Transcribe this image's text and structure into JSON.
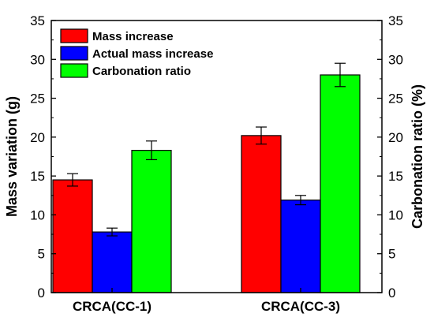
{
  "chart_data": {
    "type": "bar",
    "categories": [
      "CRCA(CC-1)",
      "CRCA(CC-3)"
    ],
    "series": [
      {
        "name": "Mass increase",
        "axis": "left",
        "color": "#ff0000",
        "values": [
          14.5,
          20.2
        ],
        "errors": [
          0.8,
          1.1
        ]
      },
      {
        "name": "Actual mass increase",
        "axis": "left",
        "color": "#0000ff",
        "values": [
          7.8,
          11.9
        ],
        "errors": [
          0.5,
          0.6
        ]
      },
      {
        "name": "Carbonation ratio",
        "axis": "right",
        "color": "#00ff00",
        "values": [
          18.3,
          28.0
        ],
        "errors": [
          1.2,
          1.5
        ]
      }
    ],
    "ylabel": "Mass variation (g)",
    "y2label": "Carbonation ratio (%)",
    "ylim": [
      0,
      35
    ],
    "y2lim": [
      0,
      35
    ],
    "yticks": [
      "0",
      "5",
      "10",
      "15",
      "20",
      "25",
      "30",
      "35"
    ],
    "y2ticks": [
      "0",
      "5",
      "10",
      "15",
      "20",
      "25",
      "30",
      "35"
    ],
    "yticks_values": [
      0,
      5,
      10,
      15,
      20,
      25,
      30,
      35
    ],
    "grid": false,
    "legend_position": "top-left"
  }
}
